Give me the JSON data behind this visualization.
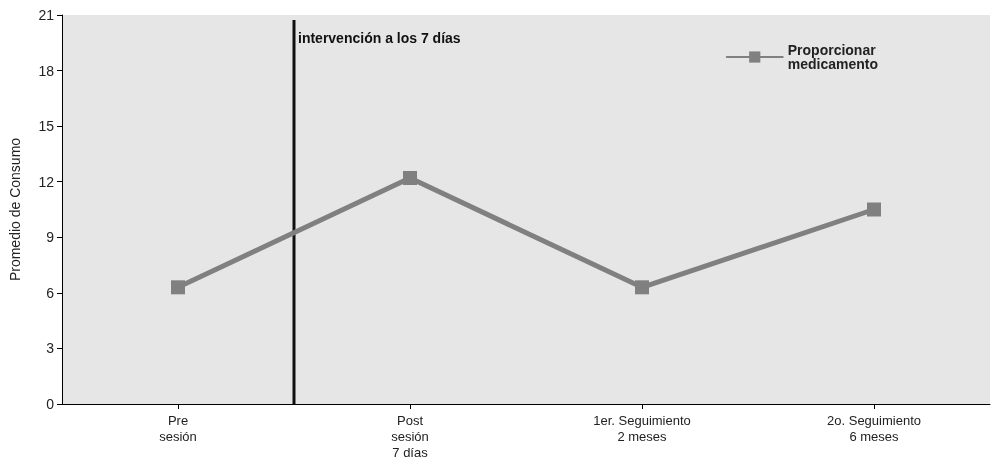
{
  "chart_data": {
    "type": "line",
    "ylabel": "Promedio de Consumo",
    "categories": [
      "Pre\nsesión",
      "Post\nsesión\n7 días",
      "1er. Seguimiento\n2 meses",
      "2o. Seguimiento\n6 meses"
    ],
    "series": [
      {
        "name": "Proporcionar\nmedicamento",
        "color": "#808080",
        "values": [
          6.3,
          12.2,
          6.3,
          10.5
        ]
      }
    ],
    "ylim": [
      0,
      21
    ],
    "yticks": [
      0,
      3,
      6,
      9,
      12,
      15,
      18,
      21
    ],
    "annotations": [
      "intervención a los 7 días"
    ],
    "grid": false,
    "legend": "top right",
    "marker": "square",
    "line_style": "solid"
  }
}
